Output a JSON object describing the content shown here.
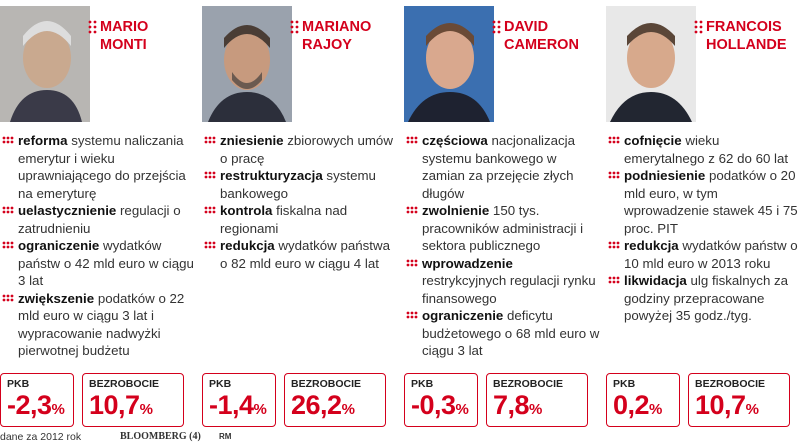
{
  "columns": [
    {
      "name_line1": "MARIO",
      "name_line2": "MONTI",
      "items": [
        {
          "bold": "reforma",
          "text": " systemu naliczania emerytur i wieku uprawniającego do przejścia na emeryturę"
        },
        {
          "bold": "uelastycznienie",
          "text": " regulacji o zatrudnieniu"
        },
        {
          "bold": "ograniczenie",
          "text": " wydatków państw o 42 mld euro w ciągu 3 lat"
        },
        {
          "bold": "zwiększenie",
          "text": " podatków o 22 mld euro w ciągu 3 lat i wypracowanie nadwyżki pierwotnej budżetu"
        }
      ],
      "pkb_label": "PKB",
      "pkb_value": "-2,3",
      "unemployment_label": "BEZROBOCIE",
      "unemployment_value": "10,7"
    },
    {
      "name_line1": "MARIANO",
      "name_line2": "RAJOY",
      "items": [
        {
          "bold": "zniesienie",
          "text": " zbiorowych umów o pracę"
        },
        {
          "bold": "restrukturyzacja",
          "text": " systemu bankowego"
        },
        {
          "bold": "kontrola",
          "text": " fiskalna nad regionami"
        },
        {
          "bold": "redukcja",
          "text": " wydatków państwa o 82 mld euro w ciągu 4 lat"
        }
      ],
      "pkb_label": "PKB",
      "pkb_value": "-1,4",
      "unemployment_label": "BEZROBOCIE",
      "unemployment_value": "26,2"
    },
    {
      "name_line1": "DAVID",
      "name_line2": "CAMERON",
      "items": [
        {
          "bold": "częściowa",
          "text": " nacjonalizacja systemu bankowego w zamian za przejęcie złych długów"
        },
        {
          "bold": "zwolnienie",
          "text": " 150 tys. pracowników administracji i sektora publicznego"
        },
        {
          "bold": "wprowadzenie",
          "text": " restrykcyjnych regulacji rynku finansowego"
        },
        {
          "bold": "ograniczenie",
          "text": " deficytu budżetowego o 68 mld euro w ciągu 3 lat"
        }
      ],
      "pkb_label": "PKB",
      "pkb_value": "-0,3",
      "unemployment_label": "BEZROBOCIE",
      "unemployment_value": "7,8"
    },
    {
      "name_line1": "FRANCOIS",
      "name_line2": "HOLLANDE",
      "items": [
        {
          "bold": "cofnięcie",
          "text": " wieku emerytalnego z 62 do 60 lat"
        },
        {
          "bold": "podniesienie",
          "text": " podatków o 20 mld euro, w tym wprowadzenie stawek 45 i 75 proc. PIT"
        },
        {
          "bold": "redukcja",
          "text": " wydatków państw o 10 mld euro w 2013 roku"
        },
        {
          "bold": "likwidacja",
          "text": " ulg fiskalnych za godziny przepracowane powyżej 35 godz./tyg."
        }
      ],
      "pkb_label": "PKB",
      "pkb_value": "0,2",
      "unemployment_label": "BEZROBOCIE",
      "unemployment_value": "10,7"
    }
  ],
  "percent_sign": "%",
  "footer": {
    "note": "dane za 2012 rok",
    "source": "BLOOMBERG (4)",
    "author": "RM"
  },
  "colors": {
    "accent": "#d4001c"
  },
  "icons": [
    "red-dot-grid-bullet-icon",
    "portrait-photo"
  ]
}
